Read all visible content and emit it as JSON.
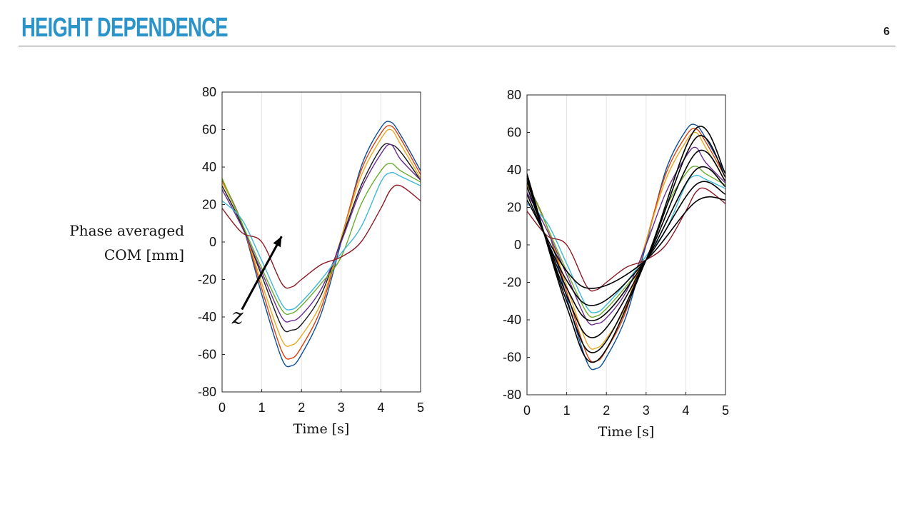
{
  "slide": {
    "title": "HEIGHT DEPENDENCE",
    "page_number": "6",
    "accent_color": "#2a93c9",
    "rule_color": "#7a7a7a"
  },
  "shared_ylabel_lines": [
    "Phase averaged",
    "COM [mm]"
  ],
  "arrow_label": "z",
  "chart_data": [
    {
      "type": "line",
      "title": "",
      "xlabel": "Time [s]",
      "ylabel": "Phase averaged COM [mm]",
      "xlim": [
        0,
        5
      ],
      "ylim": [
        -80,
        80
      ],
      "xticks": [
        0,
        1,
        2,
        3,
        4,
        5
      ],
      "yticks": [
        -80,
        -60,
        -40,
        -20,
        0,
        20,
        40,
        60,
        80
      ],
      "grid": "vertical",
      "legend": "none",
      "annotation": {
        "text": "z",
        "arrow_from": [
          0.5,
          -36
        ],
        "arrow_to": [
          1.5,
          3
        ]
      },
      "series": [
        {
          "color": "#0a4f9a",
          "x": [
            0,
            0.5,
            1.0,
            1.5,
            1.75,
            2.0,
            2.5,
            3.0,
            3.5,
            4.0,
            4.25,
            4.5,
            5.0
          ],
          "y": [
            33,
            10,
            -28,
            -62,
            -66,
            -60,
            -38,
            0,
            40,
            61,
            64,
            57,
            38
          ]
        },
        {
          "color": "#d9420f",
          "x": [
            0,
            0.5,
            1.0,
            1.5,
            1.75,
            2.0,
            2.5,
            3.0,
            3.5,
            4.0,
            4.25,
            4.5,
            5.0
          ],
          "y": [
            33,
            10,
            -25,
            -58,
            -62,
            -56,
            -35,
            2,
            38,
            58,
            62,
            55,
            36
          ]
        },
        {
          "color": "#e9a91e",
          "x": [
            0,
            0.5,
            1.0,
            1.5,
            1.75,
            2.0,
            2.5,
            3.0,
            3.5,
            4.0,
            4.25,
            4.5,
            5.0
          ],
          "y": [
            32,
            10,
            -22,
            -52,
            -55,
            -50,
            -32,
            2,
            35,
            55,
            60,
            52,
            34
          ]
        },
        {
          "color": "#1a1a1a",
          "x": [
            0,
            0.5,
            1.0,
            1.5,
            1.75,
            2.0,
            2.5,
            3.0,
            3.5,
            4.0,
            4.25,
            4.5,
            5.0
          ],
          "y": [
            30,
            9,
            -18,
            -45,
            -47,
            -44,
            -28,
            1,
            30,
            50,
            52,
            48,
            33
          ]
        },
        {
          "color": "#6b2c8f",
          "x": [
            0,
            0.5,
            1.0,
            1.5,
            1.75,
            2.0,
            2.5,
            3.0,
            3.5,
            4.0,
            4.25,
            4.5,
            5.0
          ],
          "y": [
            28,
            8,
            -16,
            -40,
            -42,
            -39,
            -25,
            0,
            28,
            47,
            52,
            44,
            33
          ]
        },
        {
          "color": "#6aac2c",
          "x": [
            0,
            0.5,
            1.0,
            1.5,
            1.75,
            2.0,
            2.5,
            3.0,
            3.5,
            4.0,
            4.25,
            4.5,
            5.0
          ],
          "y": [
            34,
            10,
            -14,
            -36,
            -38,
            -34,
            -22,
            -8,
            20,
            38,
            42,
            38,
            32
          ]
        },
        {
          "color": "#3fb8d8",
          "x": [
            0,
            0.5,
            1.0,
            1.5,
            1.75,
            2.0,
            2.5,
            3.0,
            3.5,
            4.0,
            4.25,
            4.5,
            5.0
          ],
          "y": [
            22,
            12,
            -10,
            -33,
            -36,
            -32,
            -20,
            -6,
            8,
            32,
            37,
            35,
            30
          ]
        },
        {
          "color": "#8b1a25",
          "x": [
            0,
            0.5,
            1.0,
            1.5,
            1.75,
            2.0,
            2.5,
            3.0,
            3.5,
            4.0,
            4.25,
            4.5,
            5.0
          ],
          "y": [
            18,
            5,
            0,
            -22,
            -24,
            -20,
            -12,
            -8,
            0,
            18,
            28,
            30,
            22
          ]
        }
      ]
    },
    {
      "type": "line",
      "title": "",
      "xlabel": "Time [s]",
      "ylabel": "",
      "xlim": [
        0,
        5
      ],
      "ylim": [
        -80,
        80
      ],
      "xticks": [
        0,
        1,
        2,
        3,
        4,
        5
      ],
      "yticks": [
        -80,
        -60,
        -40,
        -20,
        0,
        20,
        40,
        60,
        80
      ],
      "grid": "vertical",
      "legend": "none",
      "series": [
        {
          "color": "#0a4f9a",
          "x": [
            0,
            0.5,
            1.0,
            1.5,
            1.75,
            2.0,
            2.5,
            3.0,
            3.5,
            4.0,
            4.25,
            4.5,
            5.0
          ],
          "y": [
            33,
            10,
            -28,
            -62,
            -66,
            -60,
            -38,
            0,
            40,
            61,
            64,
            57,
            38
          ]
        },
        {
          "color": "#d9420f",
          "x": [
            0,
            0.5,
            1.0,
            1.5,
            1.75,
            2.0,
            2.5,
            3.0,
            3.5,
            4.0,
            4.25,
            4.5,
            5.0
          ],
          "y": [
            33,
            10,
            -25,
            -58,
            -62,
            -56,
            -35,
            2,
            38,
            58,
            62,
            55,
            36
          ]
        },
        {
          "color": "#e9a91e",
          "x": [
            0,
            0.5,
            1.0,
            1.5,
            1.75,
            2.0,
            2.5,
            3.0,
            3.5,
            4.0,
            4.25,
            4.5,
            5.0
          ],
          "y": [
            32,
            10,
            -22,
            -52,
            -55,
            -50,
            -32,
            2,
            35,
            55,
            60,
            52,
            34
          ]
        },
        {
          "color": "#6b2c8f",
          "x": [
            0,
            0.5,
            1.0,
            1.5,
            1.75,
            2.0,
            2.5,
            3.0,
            3.5,
            4.0,
            4.25,
            4.5,
            5.0
          ],
          "y": [
            28,
            8,
            -16,
            -40,
            -42,
            -39,
            -25,
            0,
            28,
            47,
            52,
            44,
            33
          ]
        },
        {
          "color": "#6aac2c",
          "x": [
            0,
            0.5,
            1.0,
            1.5,
            1.75,
            2.0,
            2.5,
            3.0,
            3.5,
            4.0,
            4.25,
            4.5,
            5.0
          ],
          "y": [
            34,
            10,
            -14,
            -36,
            -38,
            -34,
            -22,
            -8,
            20,
            38,
            42,
            38,
            32
          ]
        },
        {
          "color": "#3fb8d8",
          "x": [
            0,
            0.5,
            1.0,
            1.5,
            1.75,
            2.0,
            2.5,
            3.0,
            3.5,
            4.0,
            4.25,
            4.5,
            5.0
          ],
          "y": [
            22,
            12,
            -10,
            -33,
            -36,
            -32,
            -20,
            -6,
            8,
            32,
            37,
            35,
            30
          ]
        },
        {
          "color": "#8b1a25",
          "x": [
            0,
            0.5,
            1.0,
            1.5,
            1.75,
            2.0,
            2.5,
            3.0,
            3.5,
            4.0,
            4.25,
            4.5,
            5.0
          ],
          "y": [
            18,
            5,
            0,
            -22,
            -24,
            -20,
            -12,
            -8,
            0,
            18,
            28,
            30,
            22
          ]
        },
        {
          "color": "#000000",
          "x": [
            0,
            1.0,
            1.75,
            3.0,
            4.25,
            5.0
          ],
          "y": [
            38,
            -33,
            -62,
            -8,
            62,
            38
          ]
        },
        {
          "color": "#000000",
          "x": [
            0,
            1.0,
            1.75,
            3.0,
            4.25,
            5.0
          ],
          "y": [
            36,
            -30,
            -57,
            -8,
            57,
            36
          ]
        },
        {
          "color": "#000000",
          "x": [
            0,
            1.0,
            1.75,
            3.0,
            4.25,
            5.0
          ],
          "y": [
            34,
            -27,
            -49,
            -8,
            49,
            34
          ]
        },
        {
          "color": "#000000",
          "x": [
            0,
            1.0,
            1.75,
            3.0,
            4.25,
            5.0
          ],
          "y": [
            31,
            -23,
            -40,
            -8,
            40,
            31
          ]
        },
        {
          "color": "#000000",
          "x": [
            0,
            1.0,
            1.75,
            3.0,
            4.25,
            5.0
          ],
          "y": [
            27,
            -19,
            -32,
            -8,
            32,
            27
          ]
        },
        {
          "color": "#000000",
          "x": [
            0,
            1.0,
            1.75,
            3.0,
            4.25,
            5.0
          ],
          "y": [
            24,
            -14,
            -23,
            -8,
            23,
            24
          ]
        }
      ]
    }
  ]
}
